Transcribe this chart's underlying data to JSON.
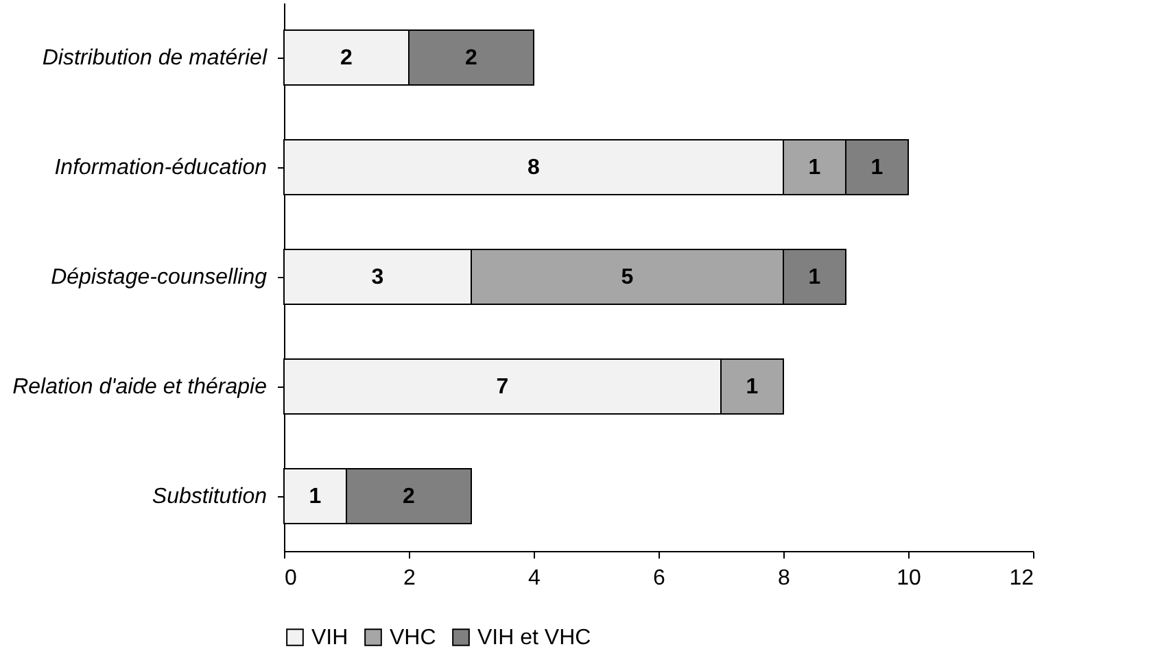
{
  "chart_data": {
    "type": "bar",
    "orientation": "horizontal",
    "stacked": true,
    "data_labels": true,
    "legend": "bottom",
    "grid": false,
    "categories": [
      "Distribution de matériel",
      "Information-éducation",
      "Dépistage-counselling",
      "Relation d'aide et thérapie",
      "Substitution"
    ],
    "series": [
      {
        "name": "VIH",
        "color": "#f2f2f2",
        "values": [
          2,
          8,
          3,
          7,
          1
        ]
      },
      {
        "name": "VHC",
        "color": "#a6a6a6",
        "values": [
          null,
          1,
          5,
          1,
          null
        ]
      },
      {
        "name": "VIH et VHC",
        "color": "#808080",
        "values": [
          2,
          1,
          1,
          null,
          2
        ]
      }
    ],
    "xlim": [
      0,
      12
    ],
    "xticks": [
      0,
      2,
      4,
      6,
      8,
      10,
      12
    ]
  }
}
